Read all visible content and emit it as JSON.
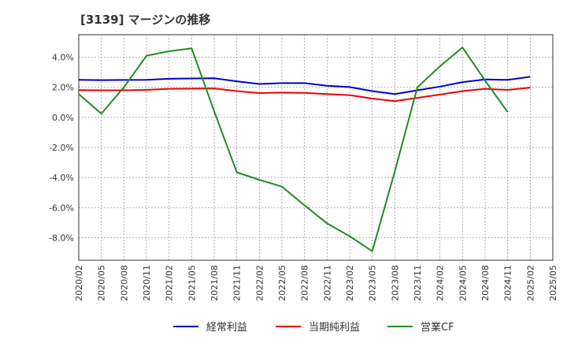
{
  "chart_data": {
    "type": "line",
    "title": "[3139]  マージンの推移",
    "xlabel": "",
    "ylabel": "",
    "ylim": [
      -9.5,
      5.5
    ],
    "yticks": [
      4,
      2,
      0,
      -2,
      -4,
      -6,
      -8
    ],
    "y_tick_labels": [
      "4.0%",
      "2.0%",
      "0.0%",
      "-2.0%",
      "-4.0%",
      "-6.0%",
      "-8.0%"
    ],
    "categories": [
      "2020/02",
      "2020/05",
      "2020/08",
      "2020/11",
      "2021/02",
      "2021/05",
      "2021/08",
      "2021/11",
      "2022/02",
      "2022/05",
      "2022/08",
      "2022/11",
      "2023/02",
      "2023/05",
      "2023/08",
      "2023/11",
      "2024/02",
      "2024/05",
      "2024/08",
      "2024/11",
      "2025/02",
      "2025/05"
    ],
    "grid": true,
    "legend_position": "bottom",
    "series": [
      {
        "name": "経常利益",
        "color": "#0000cc",
        "values": [
          2.5,
          2.48,
          2.49,
          2.5,
          2.57,
          2.59,
          2.6,
          2.4,
          2.22,
          2.28,
          2.28,
          2.1,
          2.02,
          1.75,
          1.55,
          1.8,
          2.05,
          2.35,
          2.52,
          2.5,
          2.7,
          null
        ]
      },
      {
        "name": "当期純利益",
        "color": "#ee0000",
        "values": [
          1.82,
          1.8,
          1.8,
          1.83,
          1.9,
          1.91,
          1.93,
          1.75,
          1.62,
          1.65,
          1.63,
          1.55,
          1.48,
          1.25,
          1.08,
          1.3,
          1.52,
          1.75,
          1.9,
          1.83,
          1.98,
          null
        ]
      },
      {
        "name": "営業CF",
        "color": "#228b22",
        "values": [
          1.55,
          0.25,
          2.0,
          4.1,
          4.4,
          4.6,
          0.4,
          -3.65,
          -4.15,
          -4.6,
          -5.85,
          -7.05,
          -7.9,
          -8.9,
          -3.6,
          2.0,
          3.4,
          4.65,
          2.45,
          0.35,
          null,
          null
        ]
      }
    ]
  }
}
